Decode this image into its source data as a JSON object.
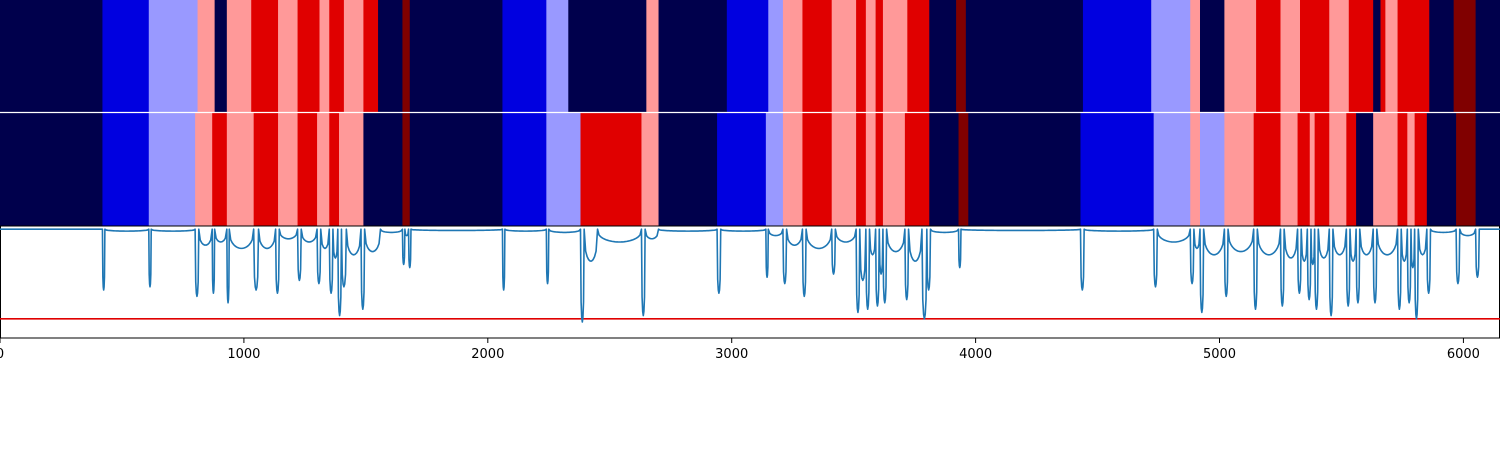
{
  "chart_data": [
    {
      "type": "heatmap",
      "title": "",
      "xlabel": "",
      "ylabel": "",
      "xlim": [
        0,
        6150
      ],
      "row_labels": [
        "",
        ""
      ],
      "palette": {
        "navy": "#00004c",
        "blue": "#0000e0",
        "light-blue": "#9999ff",
        "light-red": "#ff9999",
        "red": "#e00000",
        "dark-red": "#800000"
      },
      "rows": [
        [
          [
            0,
            420,
            "navy"
          ],
          [
            420,
            610,
            "blue"
          ],
          [
            610,
            810,
            "light-blue"
          ],
          [
            810,
            880,
            "light-red"
          ],
          [
            880,
            930,
            "navy"
          ],
          [
            930,
            1030,
            "light-red"
          ],
          [
            1030,
            1140,
            "red"
          ],
          [
            1140,
            1220,
            "light-red"
          ],
          [
            1220,
            1310,
            "red"
          ],
          [
            1310,
            1350,
            "light-red"
          ],
          [
            1350,
            1410,
            "red"
          ],
          [
            1410,
            1490,
            "light-red"
          ],
          [
            1490,
            1550,
            "red"
          ],
          [
            1550,
            1650,
            "navy"
          ],
          [
            1650,
            1680,
            "dark-red"
          ],
          [
            1680,
            2060,
            "navy"
          ],
          [
            2060,
            2240,
            "blue"
          ],
          [
            2240,
            2330,
            "light-blue"
          ],
          [
            2330,
            2650,
            "navy"
          ],
          [
            2650,
            2700,
            "light-red"
          ],
          [
            2700,
            2980,
            "navy"
          ],
          [
            2980,
            3150,
            "blue"
          ],
          [
            3150,
            3210,
            "light-blue"
          ],
          [
            3210,
            3290,
            "light-red"
          ],
          [
            3290,
            3410,
            "red"
          ],
          [
            3410,
            3510,
            "light-red"
          ],
          [
            3510,
            3550,
            "red"
          ],
          [
            3550,
            3590,
            "light-red"
          ],
          [
            3590,
            3620,
            "red"
          ],
          [
            3620,
            3720,
            "light-red"
          ],
          [
            3720,
            3810,
            "red"
          ],
          [
            3810,
            3920,
            "navy"
          ],
          [
            3920,
            3960,
            "dark-red"
          ],
          [
            3960,
            4440,
            "navy"
          ],
          [
            4440,
            4720,
            "blue"
          ],
          [
            4720,
            4880,
            "light-blue"
          ],
          [
            4880,
            4920,
            "light-red"
          ],
          [
            4920,
            5020,
            "navy"
          ],
          [
            5020,
            5150,
            "light-red"
          ],
          [
            5150,
            5250,
            "red"
          ],
          [
            5250,
            5330,
            "light-red"
          ],
          [
            5330,
            5450,
            "red"
          ],
          [
            5450,
            5530,
            "light-red"
          ],
          [
            5530,
            5630,
            "red"
          ],
          [
            5630,
            5660,
            "navy"
          ],
          [
            5660,
            5680,
            "red"
          ],
          [
            5680,
            5730,
            "light-red"
          ],
          [
            5730,
            5860,
            "red"
          ],
          [
            5860,
            5960,
            "navy"
          ],
          [
            5960,
            6050,
            "dark-red"
          ],
          [
            6050,
            6150,
            "navy"
          ]
        ],
        [
          [
            0,
            420,
            "navy"
          ],
          [
            420,
            610,
            "blue"
          ],
          [
            610,
            800,
            "light-blue"
          ],
          [
            800,
            870,
            "light-red"
          ],
          [
            870,
            930,
            "red"
          ],
          [
            930,
            1040,
            "light-red"
          ],
          [
            1040,
            1140,
            "red"
          ],
          [
            1140,
            1220,
            "light-red"
          ],
          [
            1220,
            1300,
            "red"
          ],
          [
            1300,
            1350,
            "light-red"
          ],
          [
            1350,
            1390,
            "red"
          ],
          [
            1390,
            1490,
            "light-red"
          ],
          [
            1490,
            1650,
            "navy"
          ],
          [
            1650,
            1680,
            "dark-red"
          ],
          [
            1680,
            2060,
            "navy"
          ],
          [
            2060,
            2240,
            "blue"
          ],
          [
            2240,
            2380,
            "light-blue"
          ],
          [
            2380,
            2630,
            "red"
          ],
          [
            2630,
            2700,
            "light-red"
          ],
          [
            2700,
            2940,
            "navy"
          ],
          [
            2940,
            3140,
            "blue"
          ],
          [
            3140,
            3210,
            "light-blue"
          ],
          [
            3210,
            3290,
            "light-red"
          ],
          [
            3290,
            3410,
            "red"
          ],
          [
            3410,
            3510,
            "light-red"
          ],
          [
            3510,
            3550,
            "red"
          ],
          [
            3550,
            3590,
            "light-red"
          ],
          [
            3590,
            3620,
            "red"
          ],
          [
            3620,
            3710,
            "light-red"
          ],
          [
            3710,
            3810,
            "red"
          ],
          [
            3810,
            3930,
            "navy"
          ],
          [
            3930,
            3970,
            "dark-red"
          ],
          [
            3970,
            4430,
            "navy"
          ],
          [
            4430,
            4730,
            "blue"
          ],
          [
            4730,
            4880,
            "light-blue"
          ],
          [
            4880,
            4920,
            "light-red"
          ],
          [
            4920,
            5020,
            "light-blue"
          ],
          [
            5020,
            5140,
            "light-red"
          ],
          [
            5140,
            5250,
            "red"
          ],
          [
            5250,
            5320,
            "light-red"
          ],
          [
            5320,
            5370,
            "red"
          ],
          [
            5370,
            5390,
            "light-red"
          ],
          [
            5390,
            5450,
            "red"
          ],
          [
            5450,
            5520,
            "light-red"
          ],
          [
            5520,
            5560,
            "red"
          ],
          [
            5560,
            5630,
            "navy"
          ],
          [
            5630,
            5730,
            "light-red"
          ],
          [
            5730,
            5770,
            "red"
          ],
          [
            5770,
            5800,
            "light-red"
          ],
          [
            5800,
            5850,
            "red"
          ],
          [
            5850,
            5970,
            "navy"
          ],
          [
            5970,
            6050,
            "dark-red"
          ],
          [
            6050,
            6150,
            "navy"
          ]
        ]
      ]
    },
    {
      "type": "line",
      "title": "",
      "xlabel": "",
      "ylabel": "",
      "xlim": [
        0,
        6150
      ],
      "ylim": [
        -1.7,
        0.05
      ],
      "x_ticks": [
        0,
        1000,
        2000,
        3000,
        4000,
        5000,
        6000
      ],
      "grid": false,
      "line_color": "#1f77b4",
      "threshold": {
        "value": -1.4,
        "color": "#e00000"
      },
      "dip_segments": [
        [
          0,
          420,
          0
        ],
        [
          420,
          430,
          -0.95
        ],
        [
          430,
          610,
          -0.03
        ],
        [
          610,
          620,
          -0.9
        ],
        [
          620,
          800,
          -0.03
        ],
        [
          800,
          815,
          -1.05
        ],
        [
          815,
          870,
          -0.25
        ],
        [
          870,
          880,
          -1.0
        ],
        [
          880,
          930,
          -0.2
        ],
        [
          930,
          940,
          -1.15
        ],
        [
          940,
          1040,
          -0.3
        ],
        [
          1040,
          1060,
          -0.95
        ],
        [
          1060,
          1130,
          -0.3
        ],
        [
          1130,
          1145,
          -1.0
        ],
        [
          1145,
          1220,
          -0.15
        ],
        [
          1220,
          1235,
          -0.8
        ],
        [
          1235,
          1300,
          -0.2
        ],
        [
          1300,
          1315,
          -0.85
        ],
        [
          1315,
          1350,
          -0.3
        ],
        [
          1350,
          1365,
          -1.0
        ],
        [
          1365,
          1385,
          -0.45
        ],
        [
          1385,
          1400,
          -1.35
        ],
        [
          1400,
          1420,
          -0.9
        ],
        [
          1420,
          1480,
          -0.4
        ],
        [
          1480,
          1495,
          -1.25
        ],
        [
          1495,
          1560,
          -0.35
        ],
        [
          1560,
          1650,
          -0.05
        ],
        [
          1650,
          1660,
          -0.55
        ],
        [
          1660,
          1675,
          -0.1
        ],
        [
          1675,
          1685,
          -0.6
        ],
        [
          1685,
          2060,
          -0.02
        ],
        [
          2060,
          2070,
          -0.95
        ],
        [
          2070,
          2240,
          -0.03
        ],
        [
          2240,
          2250,
          -0.85
        ],
        [
          2250,
          2380,
          -0.05
        ],
        [
          2380,
          2395,
          -1.45
        ],
        [
          2395,
          2450,
          -0.5
        ],
        [
          2450,
          2630,
          -0.2
        ],
        [
          2630,
          2645,
          -1.35
        ],
        [
          2645,
          2700,
          -0.15
        ],
        [
          2700,
          2940,
          -0.03
        ],
        [
          2940,
          2955,
          -1.0
        ],
        [
          2955,
          3140,
          -0.03
        ],
        [
          3140,
          3150,
          -0.75
        ],
        [
          3150,
          3210,
          -0.1
        ],
        [
          3210,
          3225,
          -0.85
        ],
        [
          3225,
          3290,
          -0.25
        ],
        [
          3290,
          3305,
          -1.05
        ],
        [
          3305,
          3410,
          -0.3
        ],
        [
          3410,
          3425,
          -0.7
        ],
        [
          3425,
          3510,
          -0.2
        ],
        [
          3510,
          3525,
          -1.3
        ],
        [
          3525,
          3550,
          -0.8
        ],
        [
          3550,
          3565,
          -1.25
        ],
        [
          3565,
          3590,
          -0.4
        ],
        [
          3590,
          3605,
          -1.2
        ],
        [
          3605,
          3620,
          -0.7
        ],
        [
          3620,
          3635,
          -1.15
        ],
        [
          3635,
          3710,
          -0.35
        ],
        [
          3710,
          3725,
          -1.1
        ],
        [
          3725,
          3780,
          -0.5
        ],
        [
          3780,
          3800,
          -1.4
        ],
        [
          3800,
          3815,
          -0.95
        ],
        [
          3815,
          3930,
          -0.05
        ],
        [
          3930,
          3940,
          -0.6
        ],
        [
          3940,
          4430,
          -0.02
        ],
        [
          4430,
          4445,
          -0.95
        ],
        [
          4445,
          4730,
          -0.03
        ],
        [
          4730,
          4745,
          -0.9
        ],
        [
          4745,
          4880,
          -0.2
        ],
        [
          4880,
          4895,
          -0.85
        ],
        [
          4895,
          4920,
          -0.3
        ],
        [
          4920,
          4935,
          -1.3
        ],
        [
          4935,
          5020,
          -0.4
        ],
        [
          5020,
          5035,
          -1.05
        ],
        [
          5035,
          5140,
          -0.35
        ],
        [
          5140,
          5155,
          -1.25
        ],
        [
          5155,
          5250,
          -0.4
        ],
        [
          5250,
          5265,
          -1.2
        ],
        [
          5265,
          5320,
          -0.45
        ],
        [
          5320,
          5335,
          -1.0
        ],
        [
          5335,
          5360,
          -0.5
        ],
        [
          5360,
          5375,
          -1.1
        ],
        [
          5375,
          5390,
          -0.55
        ],
        [
          5390,
          5405,
          -1.25
        ],
        [
          5405,
          5450,
          -0.45
        ],
        [
          5450,
          5465,
          -1.35
        ],
        [
          5465,
          5520,
          -0.4
        ],
        [
          5520,
          5535,
          -1.2
        ],
        [
          5535,
          5560,
          -0.5
        ],
        [
          5560,
          5575,
          -1.15
        ],
        [
          5575,
          5630,
          -0.4
        ],
        [
          5630,
          5645,
          -1.15
        ],
        [
          5645,
          5730,
          -0.4
        ],
        [
          5730,
          5745,
          -1.25
        ],
        [
          5745,
          5770,
          -0.5
        ],
        [
          5770,
          5785,
          -1.15
        ],
        [
          5785,
          5800,
          -0.6
        ],
        [
          5800,
          5815,
          -1.4
        ],
        [
          5815,
          5850,
          -0.4
        ],
        [
          5850,
          5865,
          -1.0
        ],
        [
          5865,
          5970,
          -0.05
        ],
        [
          5970,
          5985,
          -0.85
        ],
        [
          5985,
          6050,
          -0.1
        ],
        [
          6050,
          6065,
          -0.75
        ],
        [
          6065,
          6150,
          0
        ]
      ]
    }
  ]
}
